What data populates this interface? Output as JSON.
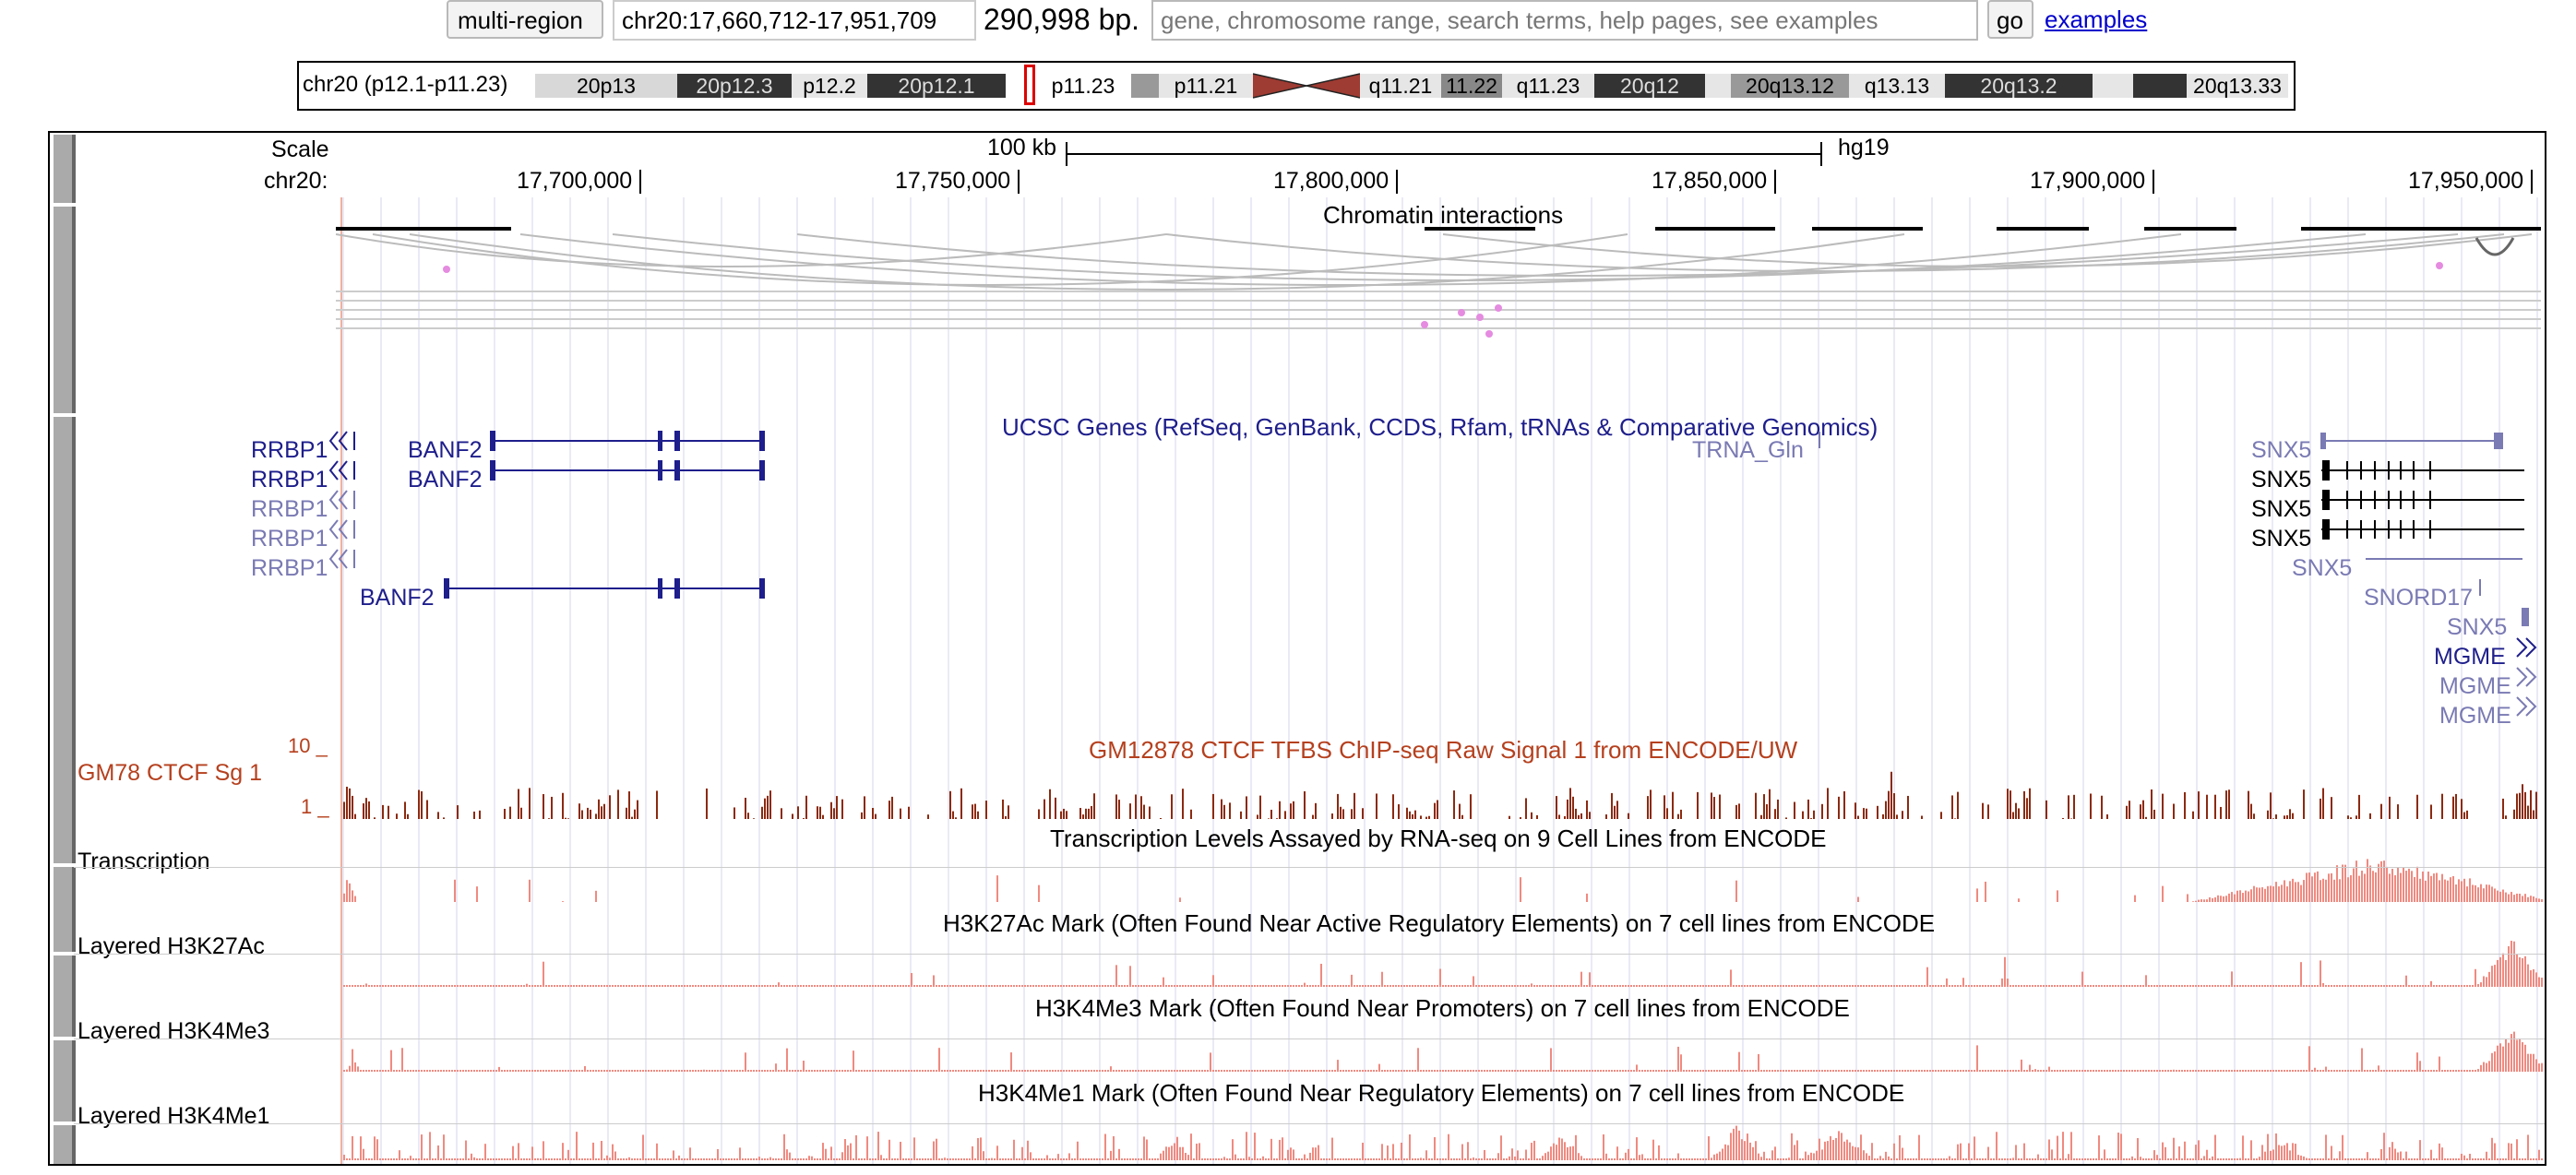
{
  "top_bar": {
    "multi_region_label": "multi-region",
    "position": "chr20:17,660,712-17,951,709",
    "size": "290,998 bp.",
    "search_placeholder": "gene, chromosome range, search terms, help pages, see examples",
    "go_label": "go",
    "examples_link": "examples"
  },
  "ideogram": {
    "label": "chr20 (p12.1-p11.23)",
    "bands": [
      "20p13",
      "20p12.3",
      "p12.2",
      "20p12.1",
      "p11.23",
      "p11.21",
      "q11.21",
      "11.22",
      "q11.23",
      "20q12",
      "20q13.12",
      "q13.13",
      "20q13.2",
      "20q13.33"
    ]
  },
  "scale": {
    "label": "Scale",
    "size": "100 kb",
    "assembly": "hg19"
  },
  "ruler": {
    "chrom": "chr20:",
    "ticks": [
      "17,700,000",
      "17,750,000",
      "17,800,000",
      "17,850,000",
      "17,900,000",
      "17,950,000"
    ]
  },
  "tracks": {
    "chromatin_title": "Chromatin interactions",
    "genes_title": "UCSC Genes (RefSeq, GenBank, CCDS, Rfam, tRNAs & Comparative Genomics)",
    "genes": {
      "rrbp1": "RRBP1",
      "banf2": "BANF2",
      "trna": "TRNA_Gln",
      "snx5": "SNX5",
      "snord17": "SNORD17",
      "mgme": "MGME"
    },
    "ctcf": {
      "side_label": "GM78 CTCF Sg 1",
      "title": "GM12878 CTCF TFBS ChIP-seq Raw Signal 1 from ENCODE/UW",
      "y_max": "10 _",
      "y_min": "1 _"
    },
    "transcription": {
      "side_label": "Transcription",
      "title": "Transcription Levels Assayed by RNA-seq on 9 Cell Lines from ENCODE"
    },
    "h3k27ac": {
      "side_label": "Layered H3K27Ac",
      "title": "H3K27Ac Mark (Often Found Near Active Regulatory Elements) on 7 cell lines from ENCODE"
    },
    "h3k4me3": {
      "side_label": "Layered H3K4Me3",
      "title": "H3K4Me3 Mark (Often Found Near Promoters) on 7 cell lines from ENCODE"
    },
    "h3k4me1": {
      "side_label": "Layered H3K4Me1",
      "title": "H3K4Me1 Mark (Often Found Near Regulatory Elements) on 7 cell lines from ENCODE"
    }
  },
  "colors": {
    "gene_dark": "#1e1e8c",
    "gene_light": "#7a7ab4",
    "ctcf": "#8b2a10",
    "signal": "#f08a80",
    "label_red": "#b5401e"
  }
}
